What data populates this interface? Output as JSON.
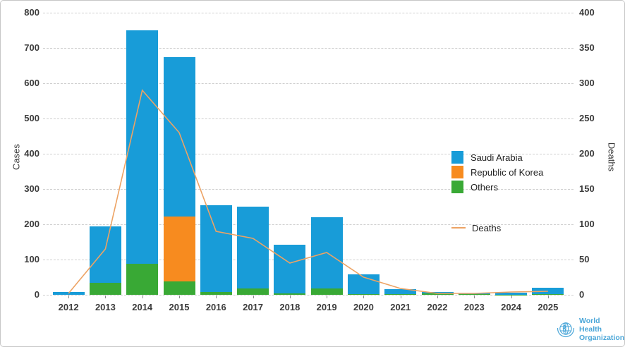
{
  "chart_data": {
    "type": "bar",
    "subtype": "stacked-bars-with-line",
    "categories": [
      "2012",
      "2013",
      "2014",
      "2015",
      "2016",
      "2017",
      "2018",
      "2019",
      "2020",
      "2021",
      "2022",
      "2023",
      "2024",
      "2025"
    ],
    "series": [
      {
        "name": "Saudi Arabia",
        "color": "#189cd8",
        "values": [
          9,
          160,
          662,
          452,
          247,
          232,
          138,
          202,
          56,
          15,
          3,
          2,
          6,
          18
        ]
      },
      {
        "name": "Republic of Korea",
        "color": "#f78b1f",
        "values": [
          0,
          0,
          0,
          185,
          0,
          0,
          0,
          0,
          0,
          0,
          0,
          0,
          0,
          0
        ]
      },
      {
        "name": "Others",
        "color": "#39a935",
        "values": [
          0,
          35,
          88,
          38,
          8,
          18,
          4,
          18,
          2,
          2,
          5,
          2,
          1,
          2
        ]
      }
    ],
    "stack_order": [
      "Others",
      "Republic of Korea",
      "Saudi Arabia"
    ],
    "line_series": {
      "name": "Deaths",
      "color": "#eda364",
      "values": [
        2,
        65,
        290,
        230,
        90,
        80,
        45,
        60,
        25,
        9,
        2,
        2,
        4,
        5
      ]
    },
    "title": "",
    "xlabel": "",
    "ylabel_left": "Cases",
    "ylabel_right": "Deaths",
    "y_left": {
      "min": 0,
      "max": 800,
      "step": 100
    },
    "y_right": {
      "min": 0,
      "max": 400,
      "step": 50
    },
    "y_left_ticks": [
      0,
      100,
      200,
      300,
      400,
      500,
      600,
      700,
      800
    ],
    "y_right_ticks": [
      0,
      50,
      100,
      150,
      200,
      250,
      300,
      350,
      400
    ],
    "grid": "horizontal-dashed",
    "legend_position": "right-center"
  },
  "legend": {
    "items": [
      "Saudi Arabia",
      "Republic of Korea",
      "Others"
    ],
    "line_item": "Deaths"
  },
  "branding": {
    "logo_line1": "World Health",
    "logo_line2": "Organization",
    "logo_color": "#4aa6d8"
  }
}
